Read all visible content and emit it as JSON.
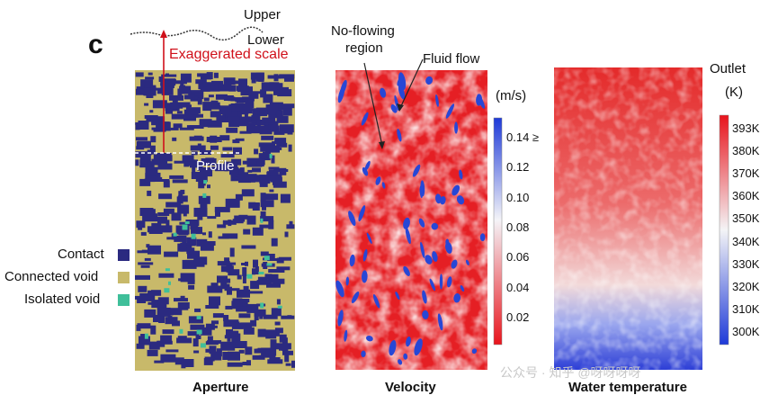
{
  "figure": {
    "panel_letter": "c",
    "profile_labels": {
      "upper": "Upper",
      "lower": "Lower"
    },
    "exaggerated_scale": "Exaggerated scale",
    "profile": "Profile",
    "annotations": {
      "no_flowing": [
        "No-flowing",
        "region"
      ],
      "fluid_flow": "Fluid flow"
    }
  },
  "legend": {
    "items": [
      {
        "label": "Contact",
        "color": "#2b2a80"
      },
      {
        "label": "Connected void",
        "color": "#c8b96a"
      },
      {
        "label": "Isolated void",
        "color": "#3fbf9a"
      }
    ]
  },
  "panels": [
    {
      "caption": "Aperture"
    },
    {
      "caption": "Velocity"
    },
    {
      "caption": "Water temperature"
    }
  ],
  "velocity_bar": {
    "unit": "(m/s)",
    "ticks": [
      "0.14 ≥",
      "0.12",
      "0.10",
      "0.08",
      "0.06",
      "0.04",
      "0.02"
    ]
  },
  "temperature_bar": {
    "outlet": "Outlet",
    "unit": "(K)",
    "ticks": [
      "393K",
      "380K",
      "370K",
      "360K",
      "350K",
      "340K",
      "330K",
      "320K",
      "310K",
      "300K"
    ]
  },
  "watermark": "公众号 · 知乎 @呀呀呀呀"
}
